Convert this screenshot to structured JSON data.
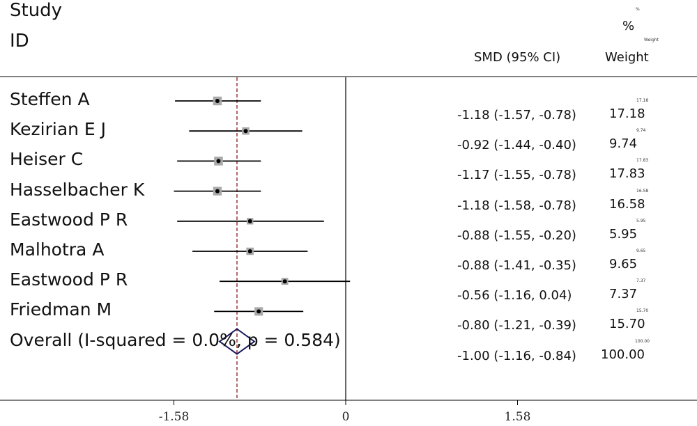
{
  "header": {
    "study": "Study",
    "id": "ID",
    "percent_tiny": "%",
    "percent": "%",
    "weight_tiny": "Weight",
    "smd_ci": "SMD (95% CI)",
    "weight": "Weight"
  },
  "chart_data": {
    "type": "forest",
    "xaxis": {
      "ticks": [
        -1.58,
        0,
        1.58
      ],
      "tick_labels": [
        "-1.58",
        "0",
        "1.58"
      ],
      "range": [
        -3.16,
        3.16
      ]
    },
    "null_line": 0,
    "overall_line": -1.0,
    "colors": {
      "ci": "#000000",
      "box": "#a9a9a9",
      "diamond": "#1a1a5e",
      "overall_line": "#8b1a1a"
    },
    "studies": [
      {
        "label": "Steffen A",
        "est": -1.18,
        "lo": -1.57,
        "hi": -0.78,
        "ci_text": "-1.18 (-1.57, -0.78)",
        "weight": 17.18,
        "weight_text": "17.18"
      },
      {
        "label": "Kezirian E J",
        "est": -0.92,
        "lo": -1.44,
        "hi": -0.4,
        "ci_text": "-0.92 (-1.44, -0.40)",
        "weight": 9.74,
        "weight_text": "9.74"
      },
      {
        "label": "Heiser C",
        "est": -1.17,
        "lo": -1.55,
        "hi": -0.78,
        "ci_text": "-1.17 (-1.55, -0.78)",
        "weight": 17.83,
        "weight_text": "17.83"
      },
      {
        "label": "Hasselbacher K",
        "est": -1.18,
        "lo": -1.58,
        "hi": -0.78,
        "ci_text": "-1.18 (-1.58, -0.78)",
        "weight": 16.58,
        "weight_text": "16.58"
      },
      {
        "label": "Eastwood P R",
        "est": -0.88,
        "lo": -1.55,
        "hi": -0.2,
        "ci_text": "-0.88 (-1.55, -0.20)",
        "weight": 5.95,
        "weight_text": "5.95"
      },
      {
        "label": "Malhotra A",
        "est": -0.88,
        "lo": -1.41,
        "hi": -0.35,
        "ci_text": "-0.88 (-1.41, -0.35)",
        "weight": 9.65,
        "weight_text": "9.65"
      },
      {
        "label": "Eastwood P R",
        "est": -0.56,
        "lo": -1.16,
        "hi": 0.04,
        "ci_text": "-0.56 (-1.16, 0.04)",
        "weight": 7.37,
        "weight_text": "7.37"
      },
      {
        "label": "Friedman M",
        "est": -0.8,
        "lo": -1.21,
        "hi": -0.39,
        "ci_text": "-0.80 (-1.21, -0.39)",
        "weight": 15.7,
        "weight_text": "15.70"
      }
    ],
    "overall": {
      "label": "Overall  (I-squared = 0.0%, p = 0.584)",
      "est": -1.0,
      "lo": -1.16,
      "hi": -0.84,
      "ci_text": "-1.00 (-1.16, -0.84)",
      "weight": 100.0,
      "weight_text": "100.00"
    }
  }
}
